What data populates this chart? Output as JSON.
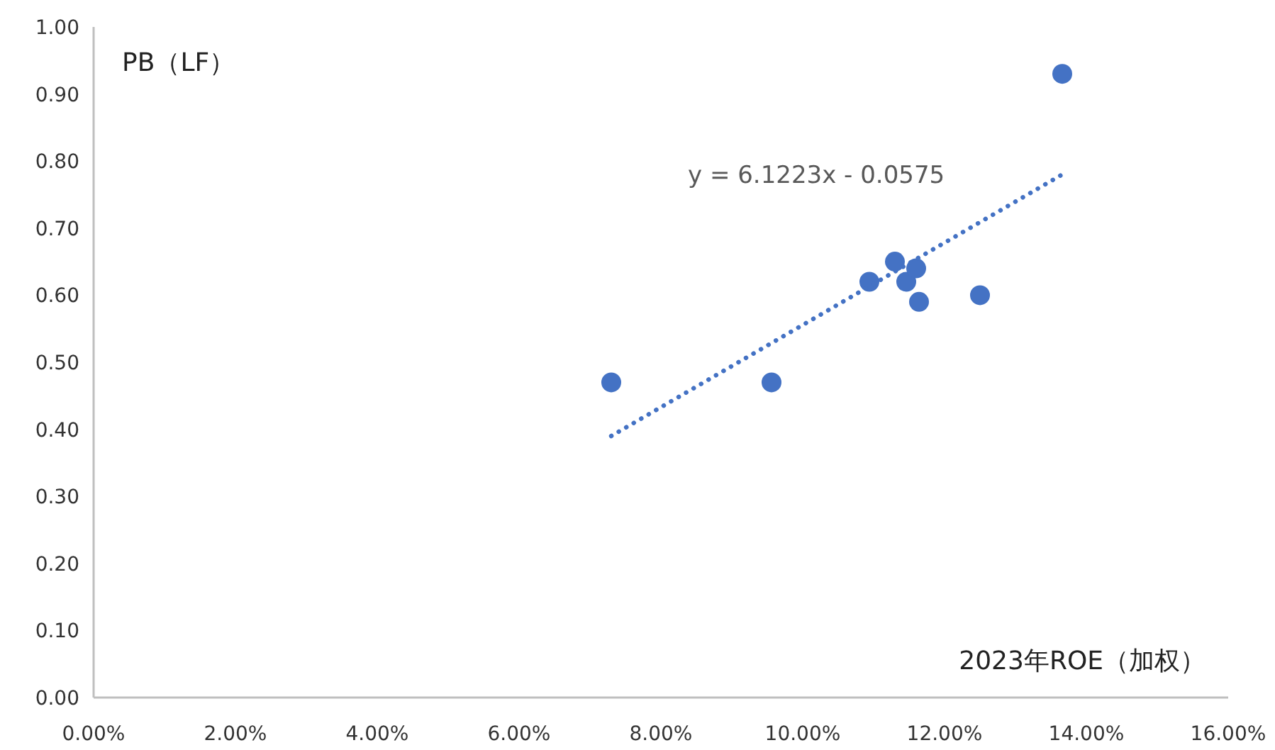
{
  "chart_data": {
    "type": "scatter",
    "xlabel": "2023年ROE（加权）",
    "ylabel": "PB（LF）",
    "annotations": [
      "y = 6.1223x - 0.0575"
    ],
    "xlim": [
      0,
      16
    ],
    "ylim": [
      0,
      1
    ],
    "xticks": [
      {
        "value": 0,
        "label": "0.00%"
      },
      {
        "value": 2,
        "label": "2.00%"
      },
      {
        "value": 4,
        "label": "4.00%"
      },
      {
        "value": 6,
        "label": "6.00%"
      },
      {
        "value": 8,
        "label": "8.00%"
      },
      {
        "value": 10,
        "label": "10.00%"
      },
      {
        "value": 12,
        "label": "12.00%"
      },
      {
        "value": 14,
        "label": "14.00%"
      },
      {
        "value": 16,
        "label": "16.00%"
      }
    ],
    "yticks": [
      {
        "value": 0,
        "label": "0.00"
      },
      {
        "value": 0.1,
        "label": "0.10"
      },
      {
        "value": 0.2,
        "label": "0.20"
      },
      {
        "value": 0.3,
        "label": "0.30"
      },
      {
        "value": 0.4,
        "label": "0.40"
      },
      {
        "value": 0.5,
        "label": "0.50"
      },
      {
        "value": 0.6,
        "label": "0.60"
      },
      {
        "value": 0.7,
        "label": "0.70"
      },
      {
        "value": 0.8,
        "label": "0.80"
      },
      {
        "value": 0.9,
        "label": "0.90"
      },
      {
        "value": 1,
        "label": "1.00"
      }
    ],
    "grid": false,
    "series": [
      {
        "color": "#4472c4",
        "marker": "circle",
        "x": [
          7.3,
          9.56,
          10.94,
          11.3,
          11.46,
          11.6,
          11.64,
          12.5,
          13.66
        ],
        "values": [
          0.47,
          0.47,
          0.62,
          0.65,
          0.62,
          0.64,
          0.59,
          0.6,
          0.93
        ]
      },
      {
        "type": "line",
        "color": "#4472c4",
        "line_style": "dotted",
        "x": [
          7.3,
          13.66
        ],
        "values": [
          0.39,
          0.78
        ]
      }
    ]
  }
}
